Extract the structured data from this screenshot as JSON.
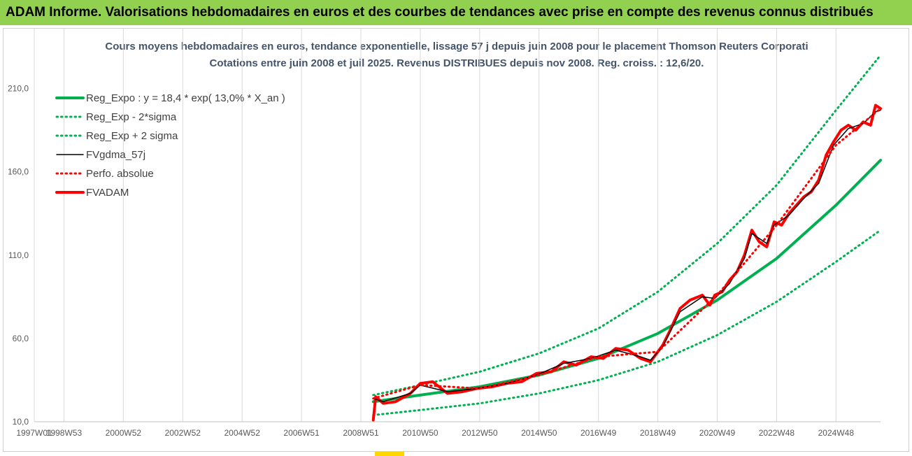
{
  "header": {
    "banner_text": "ADAM Informe. Valorisations hebdomadaires en euros et des courbes de tendances avec prise en compte des revenus connus distribués"
  },
  "colors": {
    "banner_bg": "#92d050",
    "reg_expo": "#00b050",
    "sigma": "#00b050",
    "fvgdma": "#000000",
    "perfo": "#ff0000",
    "fvadam": "#ff0000",
    "title": "#44546a"
  },
  "chart_data": {
    "type": "line",
    "title": "Cours moyens hebdomadaires en euros, tendance exponentielle, lissage 57 j depuis juin 2008 pour le placement Thomson Reuters Corporati",
    "subtitle": "Cotations entre juin 2008 et juil 2025. Revenus DISTRIBUES depuis nov 2008. Reg. croiss. : 12,6/20.",
    "x_axis": {
      "type": "date",
      "range": [
        "1997-01",
        "2025-07"
      ],
      "tick_labels": [
        "1997W01",
        "1998W53",
        "2000W52",
        "2002W52",
        "2004W52",
        "2006W51",
        "2008W51",
        "2010W50",
        "2012W50",
        "2014W50",
        "2016W49",
        "2018W49",
        "2020W49",
        "2022W48",
        "2024W48"
      ]
    },
    "y_axis": {
      "range": [
        10,
        230
      ],
      "ticks": [
        10,
        60,
        110,
        160,
        210
      ],
      "tick_labels": [
        "10,0",
        "60,0",
        "110,0",
        "160,0",
        "210,0"
      ]
    },
    "grid": {
      "vertical": true,
      "horizontal": false
    },
    "legend": {
      "position": "top-left",
      "entries": [
        {
          "label": "Reg_Expo : y = 18,4 * exp( 13,0% *  X_an )",
          "style": "solid-thick",
          "color": "#00b050"
        },
        {
          "label": "Reg_Exp - 2*sigma",
          "style": "dotted",
          "color": "#00b050"
        },
        {
          "label": "Reg_Exp + 2 sigma",
          "style": "dotted",
          "color": "#00b050"
        },
        {
          "label": "FVgdma_57j",
          "style": "solid-thin",
          "color": "#000000"
        },
        {
          "label": "Perfo. absolue",
          "style": "dotted",
          "color": "#ff0000"
        },
        {
          "label": "FVADAM",
          "style": "solid-thick",
          "color": "#ff0000"
        }
      ]
    },
    "series": [
      {
        "name": "Reg_Expo : y = 18,4 * exp( 13,0% *  X_an )",
        "x": [
          "2008-06",
          "2010-01",
          "2012-01",
          "2014-01",
          "2016-01",
          "2018-01",
          "2020-01",
          "2022-01",
          "2024-01",
          "2025-07"
        ],
        "y": [
          22,
          26,
          31,
          38,
          48,
          63,
          83,
          108,
          140,
          167
        ]
      },
      {
        "name": "Reg_Exp - 2*sigma",
        "x": [
          "2008-06",
          "2010-01",
          "2012-01",
          "2014-01",
          "2016-01",
          "2018-01",
          "2020-01",
          "2022-01",
          "2024-01",
          "2025-07"
        ],
        "y": [
          14,
          17,
          21,
          27,
          35,
          46,
          62,
          82,
          106,
          125
        ]
      },
      {
        "name": "Reg_Exp + 2 sigma",
        "x": [
          "2008-06",
          "2010-01",
          "2012-01",
          "2014-01",
          "2016-01",
          "2018-01",
          "2020-01",
          "2022-01",
          "2024-01",
          "2025-07"
        ],
        "y": [
          26,
          32,
          40,
          51,
          66,
          88,
          117,
          152,
          197,
          230
        ]
      },
      {
        "name": "FVADAM",
        "x": [
          "2008-06",
          "2008-07",
          "2008-10",
          "2009-03",
          "2009-09",
          "2010-01",
          "2010-06",
          "2010-12",
          "2011-06",
          "2011-12",
          "2012-06",
          "2012-12",
          "2013-06",
          "2013-12",
          "2014-06",
          "2014-11",
          "2015-04",
          "2015-10",
          "2016-03",
          "2016-08",
          "2017-01",
          "2017-06",
          "2017-10",
          "2018-01",
          "2018-03",
          "2018-06",
          "2018-10",
          "2019-02",
          "2019-07",
          "2019-10",
          "2019-12",
          "2020-03",
          "2020-06",
          "2020-09",
          "2020-12",
          "2021-03",
          "2021-06",
          "2021-09",
          "2021-12",
          "2022-03",
          "2022-06",
          "2022-09",
          "2022-12",
          "2023-03",
          "2023-06",
          "2023-09",
          "2023-12",
          "2024-03",
          "2024-06",
          "2024-09",
          "2024-12",
          "2025-03",
          "2025-05",
          "2025-07"
        ],
        "y": [
          11,
          25,
          21,
          22,
          27,
          33,
          34,
          27,
          28,
          30,
          31,
          33,
          34,
          39,
          40,
          46,
          44,
          49,
          48,
          54,
          53,
          48,
          46,
          52,
          56,
          65,
          78,
          83,
          86,
          80,
          86,
          88,
          95,
          100,
          110,
          125,
          118,
          115,
          130,
          128,
          135,
          140,
          145,
          148,
          155,
          170,
          178,
          185,
          188,
          185,
          190,
          188,
          200,
          198
        ]
      },
      {
        "name": "FVgdma_57j",
        "x": [
          "2008-06",
          "2008-10",
          "2009-09",
          "2010-01",
          "2010-12",
          "2011-12",
          "2012-12",
          "2013-12",
          "2014-11",
          "2015-10",
          "2016-08",
          "2017-06",
          "2017-10",
          "2018-03",
          "2018-10",
          "2019-07",
          "2019-12",
          "2020-06",
          "2020-12",
          "2021-03",
          "2021-09",
          "2021-12",
          "2022-06",
          "2022-12",
          "2023-06",
          "2023-12",
          "2024-06",
          "2024-12",
          "2025-05",
          "2025-07"
        ],
        "y": [
          24,
          22,
          27,
          32,
          28,
          30,
          33,
          38,
          45,
          48,
          53,
          49,
          47,
          55,
          76,
          85,
          84,
          93,
          108,
          123,
          117,
          128,
          134,
          144,
          153,
          176,
          186,
          189,
          196,
          197
        ]
      },
      {
        "name": "Perfo. absolue",
        "x": [
          "2008-06",
          "2010-01",
          "2012-01",
          "2014-01",
          "2016-01",
          "2018-01",
          "2020-01",
          "2022-01",
          "2024-01",
          "2025-07"
        ],
        "y": [
          24,
          32,
          30,
          38,
          49,
          52,
          86,
          128,
          176,
          198
        ]
      }
    ]
  }
}
